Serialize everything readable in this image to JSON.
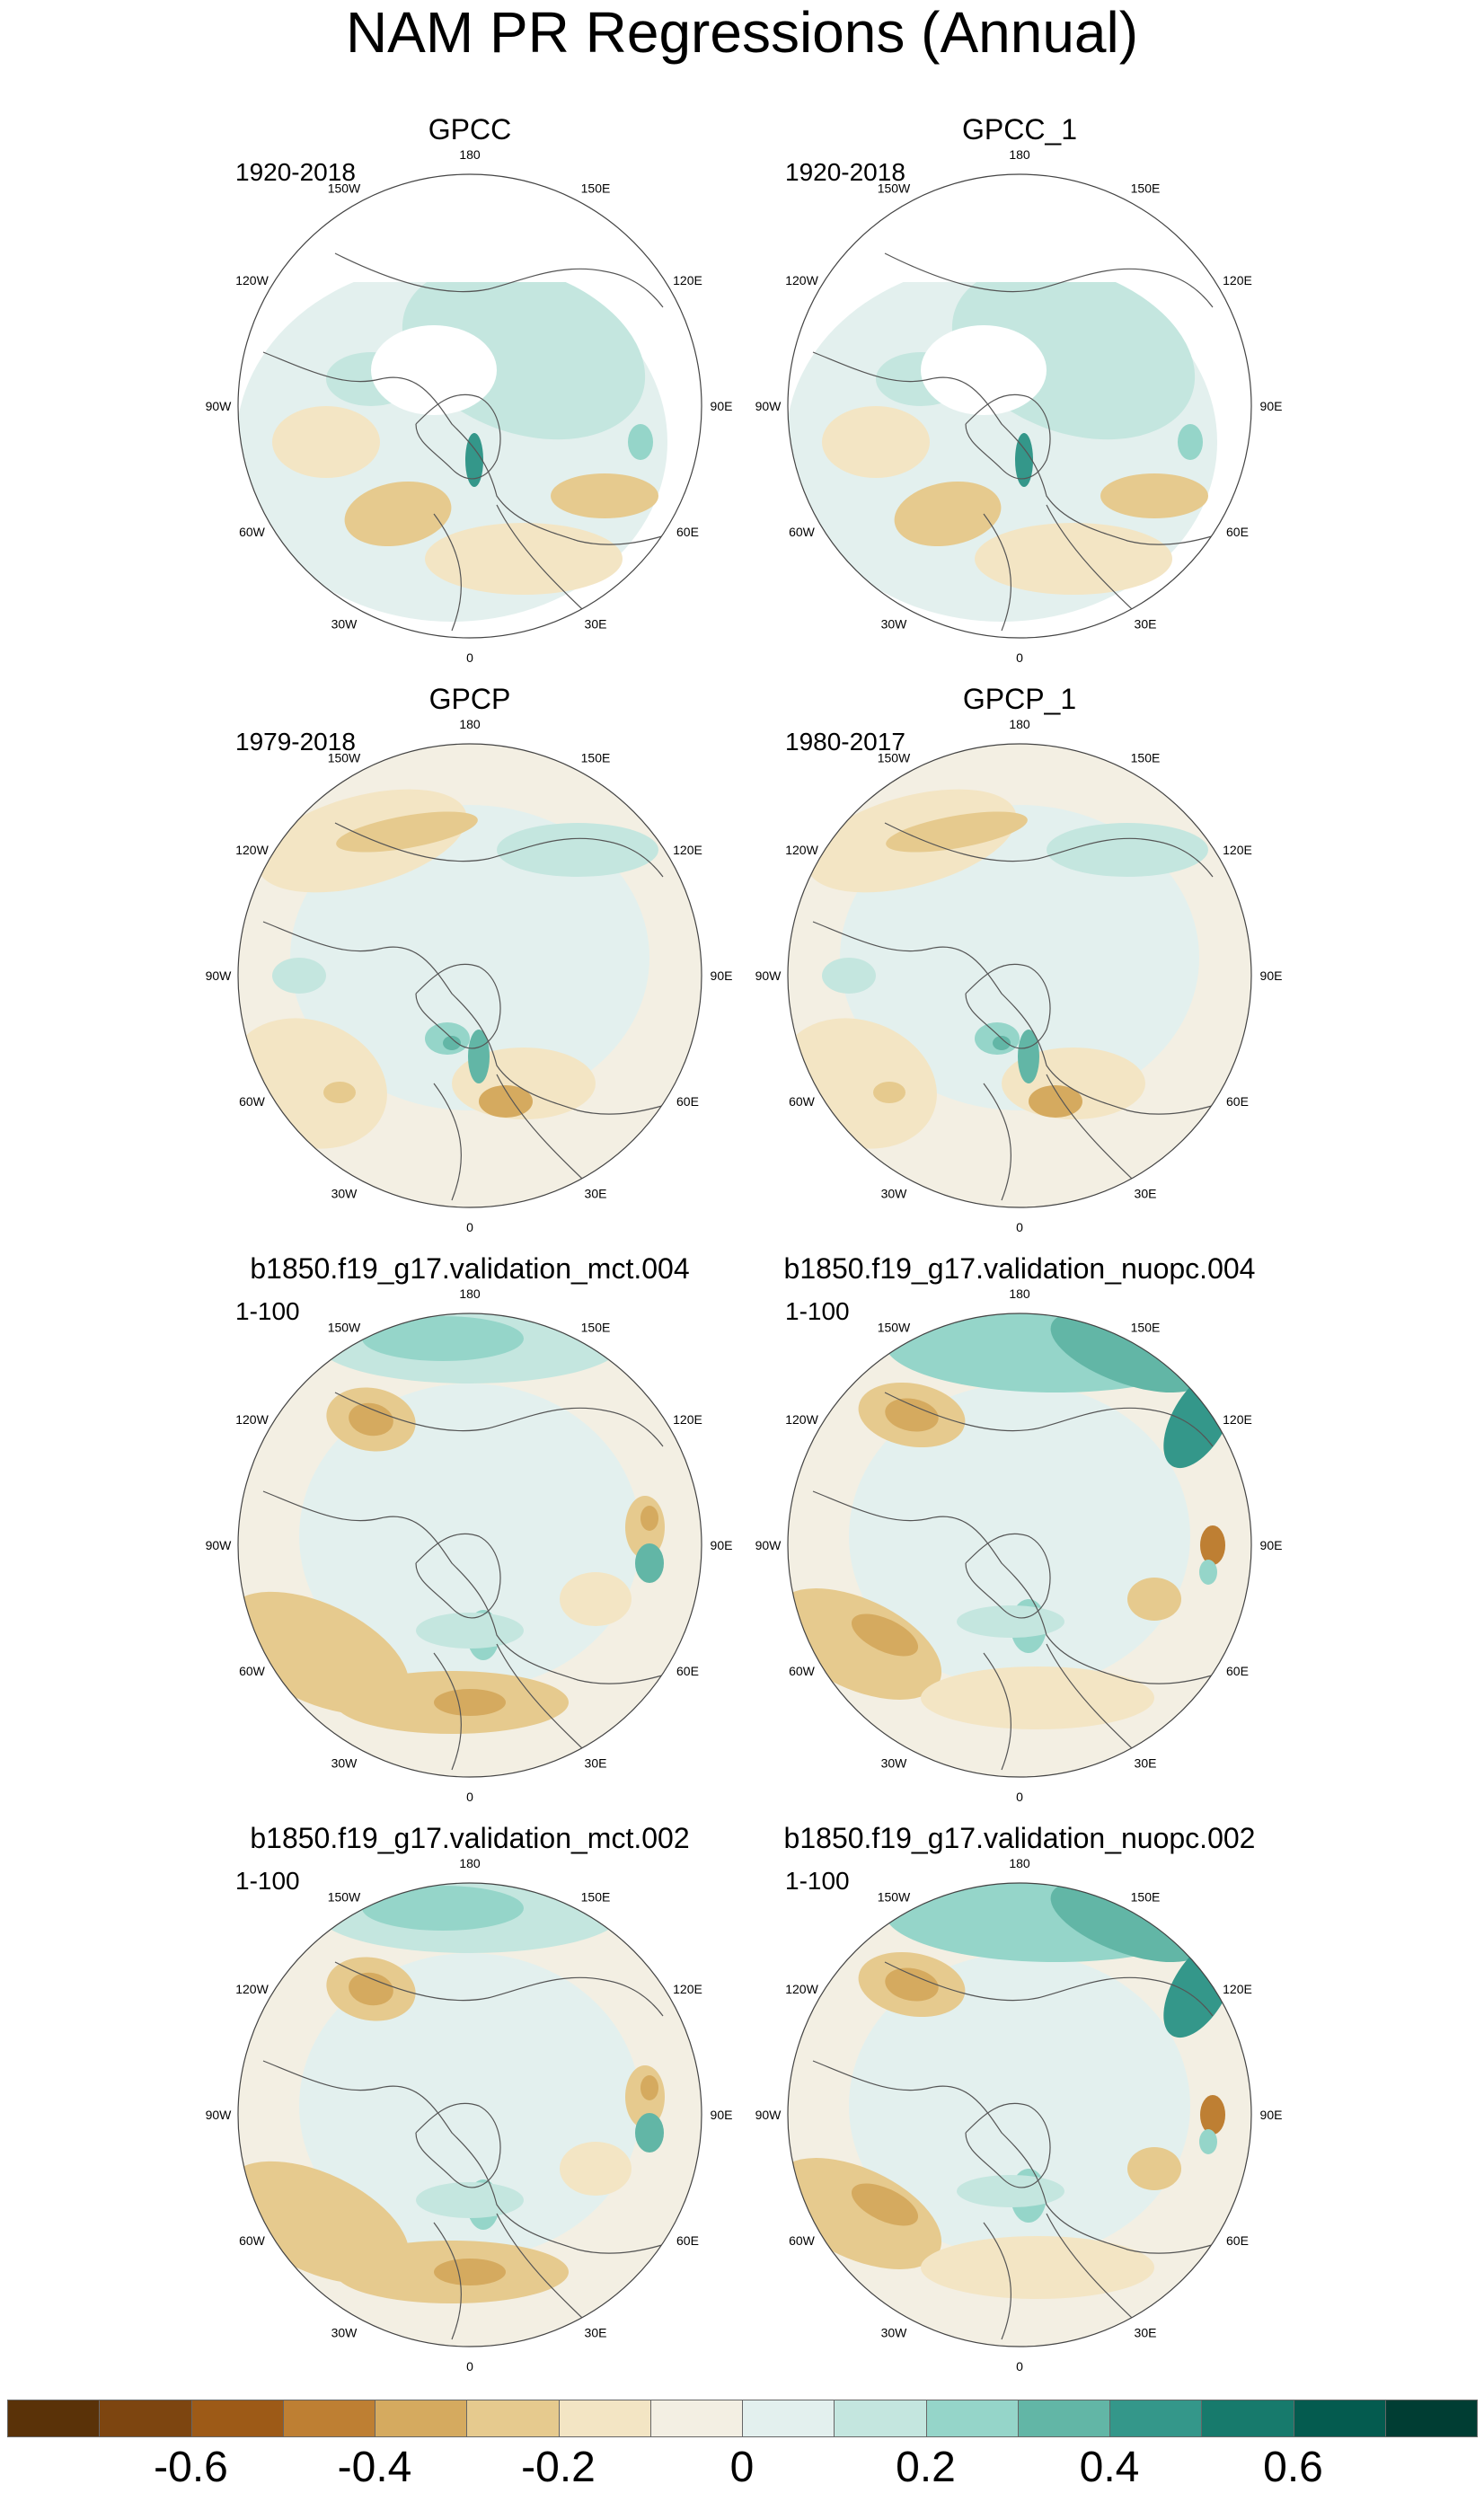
{
  "title": "NAM PR Regressions (Annual)",
  "panels": [
    {
      "title": "GPCC",
      "period": "1920-2018",
      "variant": "obs_cc"
    },
    {
      "title": "GPCC_1",
      "period": "1920-2018",
      "variant": "obs_cc"
    },
    {
      "title": "GPCP",
      "period": "1979-2018",
      "variant": "obs_cp"
    },
    {
      "title": "GPCP_1",
      "period": "1980-2017",
      "variant": "obs_cp"
    },
    {
      "title": "b1850.f19_g17.validation_mct.004",
      "period": "1-100",
      "variant": "model_a"
    },
    {
      "title": "b1850.f19_g17.validation_nuopc.004",
      "period": "1-100",
      "variant": "model_b"
    },
    {
      "title": "b1850.f19_g17.validation_mct.002",
      "period": "1-100",
      "variant": "model_a"
    },
    {
      "title": "b1850.f19_g17.validation_nuopc.002",
      "period": "1-100",
      "variant": "model_b"
    }
  ],
  "longitude_labels": [
    "180",
    "150E",
    "120E",
    "90E",
    "60E",
    "30E",
    "0",
    "30W",
    "60W",
    "90W",
    "120W",
    "150W"
  ],
  "colorbar": {
    "colors": [
      "#5a3208",
      "#7d4510",
      "#9d5a17",
      "#be7f33",
      "#d5aa5f",
      "#e6ca8e",
      "#f3e5c4",
      "#f3efe3",
      "#e3f0ee",
      "#c4e6df",
      "#95d5c9",
      "#62b6a6",
      "#34978a",
      "#177a6c",
      "#045b4f",
      "#003d33"
    ],
    "tick_labels": [
      "-0.6",
      "-0.4",
      "-0.2",
      "0",
      "0.2",
      "0.4",
      "0.6"
    ]
  },
  "colors": {
    "brown_strong": "#be7f33",
    "brown_mid": "#d5aa5f",
    "brown_light": "#e6ca8e",
    "tan": "#f3e5c4",
    "neutral": "#f3efe3",
    "teal_faint": "#e3f0ee",
    "teal_light": "#c4e6df",
    "teal_mid": "#95d5c9",
    "teal_strong": "#62b6a6",
    "teal_dark": "#34978a"
  }
}
